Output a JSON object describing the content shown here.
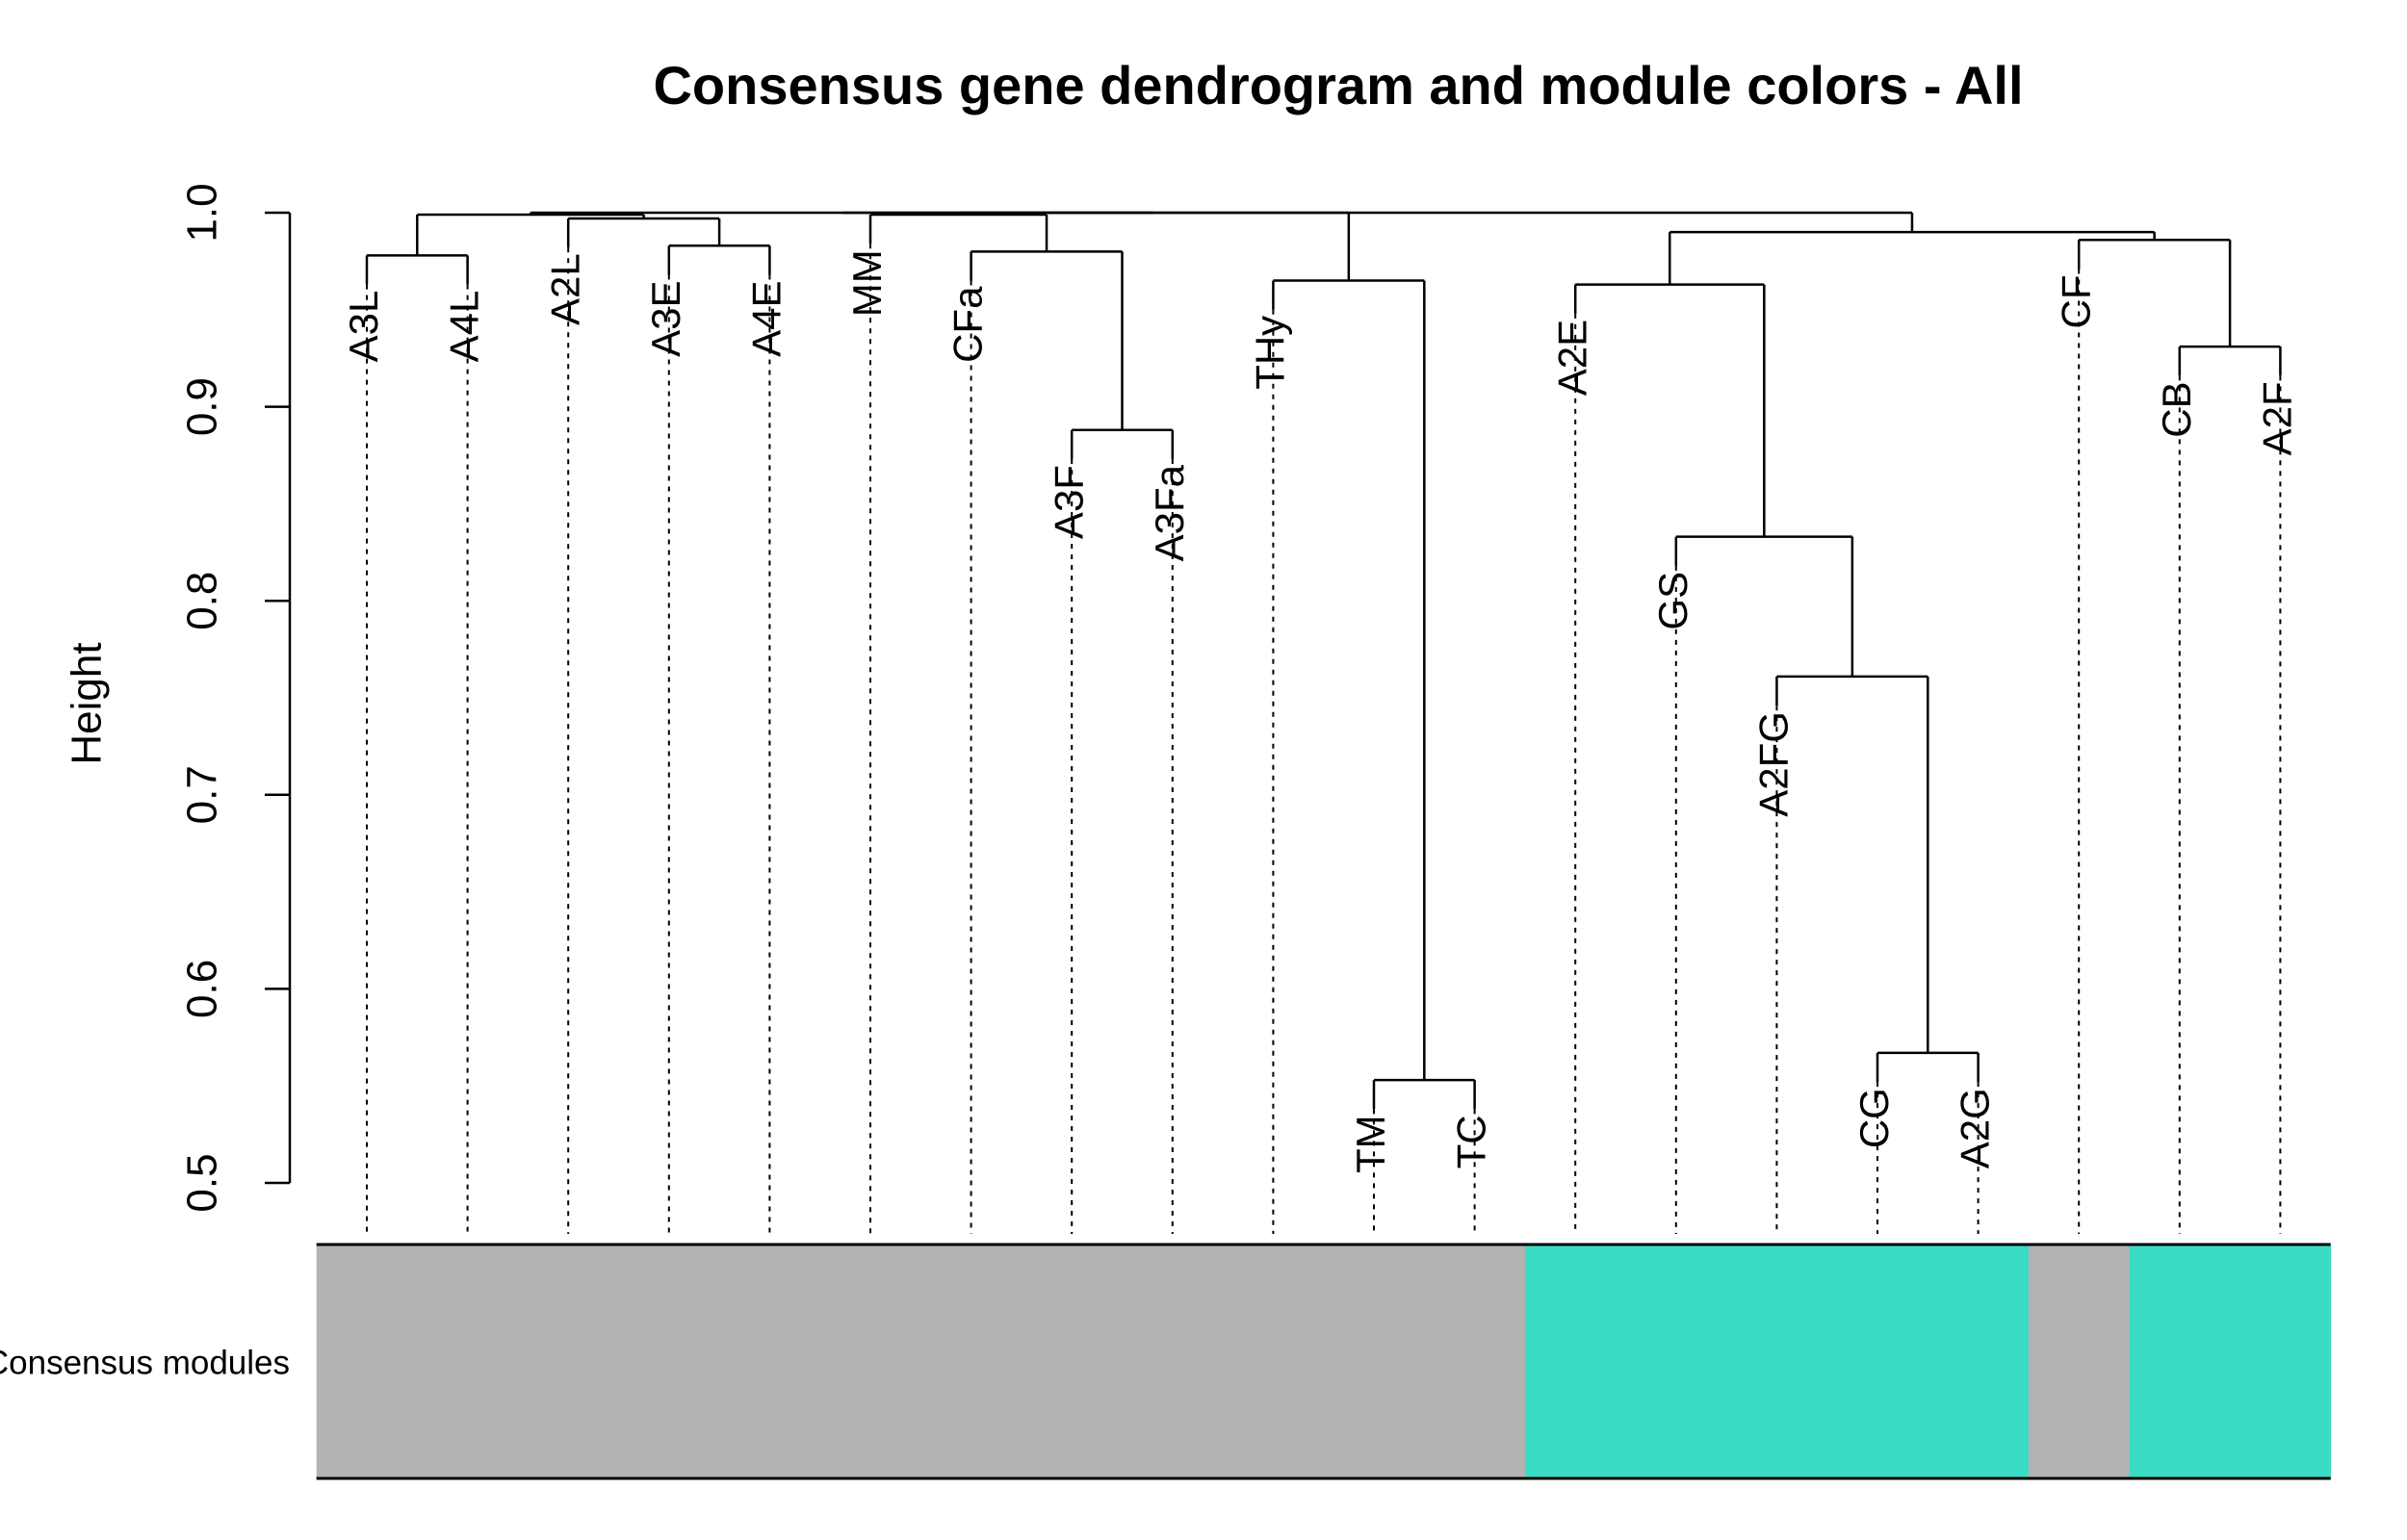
{
  "chart_data": {
    "type": "dendrogram",
    "title": "Consensus gene dendrogram and module colors - All",
    "ylabel": "Height",
    "ylim": [
      0.5,
      1.0
    ],
    "yticks": [
      0.5,
      0.6,
      0.7,
      0.8,
      0.9,
      {
        "value": 1.0,
        "label": "1.0"
      }
    ],
    "leaves": [
      "A3L",
      "A4L",
      "A2L",
      "A3E",
      "A4E",
      "MM",
      "CFa",
      "A3F",
      "A3Fa",
      "THy",
      "TM",
      "TC",
      "A2E",
      "GS",
      "A2FG",
      "CG",
      "A2G",
      "CF",
      "CB",
      "A2F"
    ],
    "merge": [
      [
        -1,
        -2
      ],
      [
        -4,
        -5
      ],
      [
        -3,
        2
      ],
      [
        1,
        3
      ],
      [
        -8,
        -9
      ],
      [
        -7,
        5
      ],
      [
        -11,
        -12
      ],
      [
        -10,
        7
      ],
      [
        -16,
        -17
      ],
      [
        -15,
        9
      ],
      [
        -14,
        10
      ],
      [
        -13,
        11
      ],
      [
        -19,
        -20
      ],
      [
        -18,
        13
      ],
      [
        12,
        14
      ],
      [
        -6,
        6
      ],
      [
        16,
        8
      ],
      [
        4,
        17
      ],
      [
        18,
        15
      ]
    ],
    "merge_heights": [
      0.978,
      0.983,
      0.997,
      0.999,
      0.888,
      0.98,
      0.553,
      0.965,
      0.567,
      0.761,
      0.833,
      0.963,
      0.931,
      0.986,
      0.99,
      0.999,
      1.0,
      1.0,
      1.0
    ],
    "color_bar_label": "Consensus modules",
    "module_colors": [
      "#b3b3b3",
      "#b3b3b3",
      "#b3b3b3",
      "#b3b3b3",
      "#b3b3b3",
      "#b3b3b3",
      "#b3b3b3",
      "#b3b3b3",
      "#b3b3b3",
      "#b3b3b3",
      "#b3b3b3",
      "#b3b3b3",
      "#3cdcc4",
      "#3cdcc4",
      "#3cdcc4",
      "#3cdcc4",
      "#3cdcc4",
      "#b3b3b3",
      "#3cdcc4",
      "#3cdcc4"
    ]
  }
}
